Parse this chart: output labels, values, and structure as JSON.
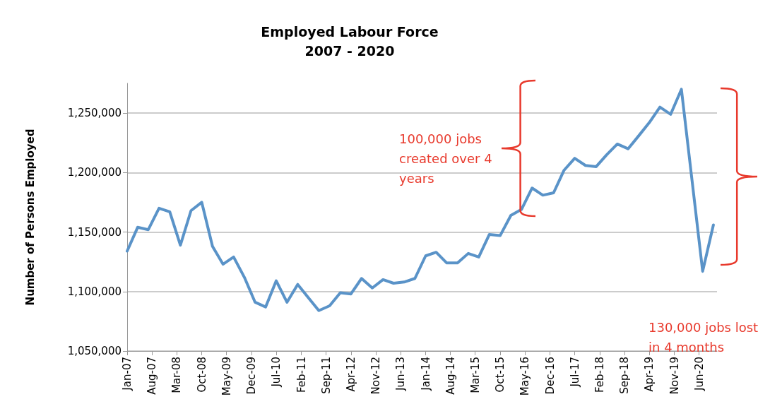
{
  "chart_data": {
    "type": "line",
    "title": "Employed Labour Force",
    "subtitle": "2007 - 2020",
    "ylabel": "Number of Persons Employed",
    "x": [
      "2007-01",
      "2007-04",
      "2007-07",
      "2007-10",
      "2008-01",
      "2008-04",
      "2008-07",
      "2008-10",
      "2009-01",
      "2009-04",
      "2009-07",
      "2009-10",
      "2010-01",
      "2010-04",
      "2010-07",
      "2010-10",
      "2011-01",
      "2011-04",
      "2011-07",
      "2011-10",
      "2012-01",
      "2012-04",
      "2012-07",
      "2012-10",
      "2013-01",
      "2013-04",
      "2013-07",
      "2013-10",
      "2014-01",
      "2014-04",
      "2014-07",
      "2014-10",
      "2015-01",
      "2015-04",
      "2015-07",
      "2015-10",
      "2016-01",
      "2016-04",
      "2016-07",
      "2016-10",
      "2017-01",
      "2017-04",
      "2017-07",
      "2017-10",
      "2018-01",
      "2018-04",
      "2018-07",
      "2018-10",
      "2019-01",
      "2019-04",
      "2019-07",
      "2019-10",
      "2020-01",
      "2020-07",
      "2020-10"
    ],
    "series": [
      {
        "color": "#5a93c8",
        "values": [
          1134000,
          1154000,
          1152000,
          1170000,
          1167000,
          1139000,
          1168000,
          1175000,
          1138000,
          1123000,
          1129000,
          1112000,
          1091000,
          1087000,
          1109000,
          1091000,
          1106000,
          1095000,
          1084000,
          1088000,
          1099000,
          1098000,
          1111000,
          1103000,
          1110000,
          1107000,
          1108000,
          1111000,
          1130000,
          1133000,
          1124000,
          1124000,
          1132000,
          1129000,
          1148000,
          1147000,
          1164000,
          1169000,
          1187000,
          1181000,
          1183000,
          1202000,
          1212000,
          1206000,
          1205000,
          1215000,
          1224000,
          1220000,
          1231000,
          1242000,
          1255000,
          1249000,
          1270000,
          1117000,
          1156000
        ]
      }
    ],
    "xlim": [
      "2007-01",
      "2020-11"
    ],
    "xticks": [
      {
        "value": "2007-01",
        "label": "Jan-07"
      },
      {
        "value": "2007-08",
        "label": "Aug-07"
      },
      {
        "value": "2008-03",
        "label": "Mar-08"
      },
      {
        "value": "2008-10",
        "label": "Oct-08"
      },
      {
        "value": "2009-05",
        "label": "May-09"
      },
      {
        "value": "2009-12",
        "label": "Dec-09"
      },
      {
        "value": "2010-07",
        "label": "Jul-10"
      },
      {
        "value": "2011-02",
        "label": "Feb-11"
      },
      {
        "value": "2011-09",
        "label": "Sep-11"
      },
      {
        "value": "2012-04",
        "label": "Apr-12"
      },
      {
        "value": "2012-11",
        "label": "Nov-12"
      },
      {
        "value": "2013-06",
        "label": "Jun-13"
      },
      {
        "value": "2014-01",
        "label": "Jan-14"
      },
      {
        "value": "2014-08",
        "label": "Aug-14"
      },
      {
        "value": "2015-03",
        "label": "Mar-15"
      },
      {
        "value": "2015-10",
        "label": "Oct-15"
      },
      {
        "value": "2016-05",
        "label": "May-16"
      },
      {
        "value": "2016-12",
        "label": "Dec-16"
      },
      {
        "value": "2017-07",
        "label": "Jul-17"
      },
      {
        "value": "2018-02",
        "label": "Feb-18"
      },
      {
        "value": "2018-09",
        "label": "Sep-18"
      },
      {
        "value": "2019-04",
        "label": "Apr-19"
      },
      {
        "value": "2019-11",
        "label": "Nov-19"
      },
      {
        "value": "2020-06",
        "label": "Jun-20"
      }
    ],
    "ylim": [
      1050000,
      1275000
    ],
    "yticks": [
      {
        "value": 1050000,
        "label": "1,050,000"
      },
      {
        "value": 1100000,
        "label": "1,100,000"
      },
      {
        "value": 1150000,
        "label": "1,150,000"
      },
      {
        "value": 1200000,
        "label": "1,200,000"
      },
      {
        "value": 1250000,
        "label": "1,250,000"
      }
    ],
    "grid": "y",
    "marker": "none",
    "line_style": "solid",
    "annotations": [
      "100,000 jobs created over 4 years",
      "130,000 jobs lost in 4 months"
    ]
  }
}
